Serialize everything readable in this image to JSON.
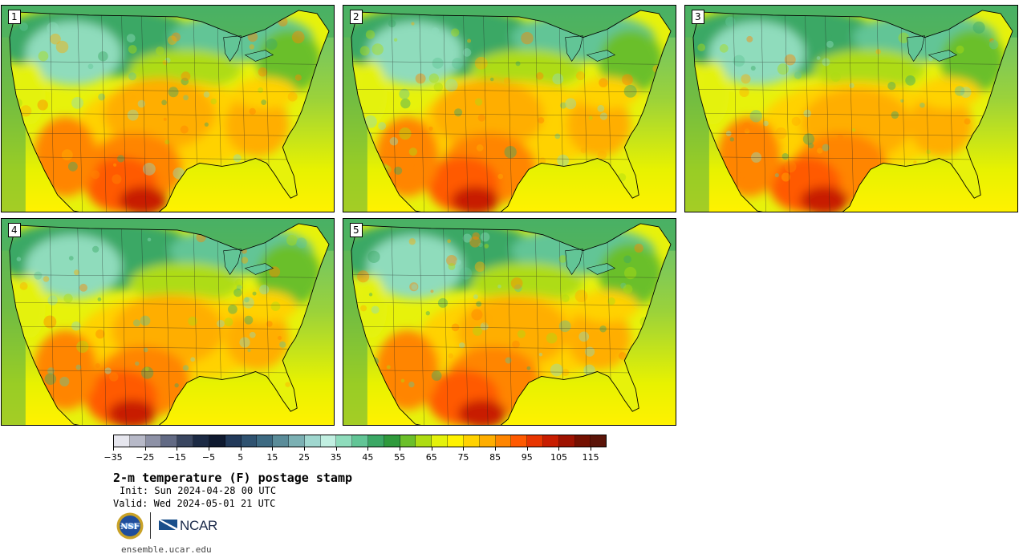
{
  "figure": {
    "title": "2-m temperature (F) postage stamp",
    "init": "Init: Sun 2024-04-28 00 UTC",
    "valid": "Valid: Wed 2024-05-01 21 UTC",
    "website": "ensemble.ucar.edu",
    "logos": [
      "NSF",
      "NCAR"
    ]
  },
  "panels": [
    {
      "label": "1",
      "seed": 11
    },
    {
      "label": "2",
      "seed": 23
    },
    {
      "label": "3",
      "seed": 37
    },
    {
      "label": "4",
      "seed": 51
    },
    {
      "label": "5",
      "seed": 67
    }
  ],
  "colorbar": {
    "ticks": [
      "−35",
      "−25",
      "−15",
      "−5",
      "5",
      "15",
      "25",
      "35",
      "45",
      "55",
      "65",
      "75",
      "85",
      "95",
      "105",
      "115"
    ],
    "colors": [
      "#e6e6ee",
      "#b7b9c8",
      "#8d91a6",
      "#626a84",
      "#3a4660",
      "#1c2a44",
      "#0f1a30",
      "#223a5a",
      "#2f5270",
      "#3d6a82",
      "#5a8c99",
      "#7bb0b3",
      "#a0d7cf",
      "#c1efe1",
      "#8fdcbc",
      "#62c596",
      "#3ba865",
      "#2f9a3c",
      "#6bbf2a",
      "#aedc12",
      "#e4f20b",
      "#fff200",
      "#ffd200",
      "#ffae00",
      "#ff8500",
      "#ff5a00",
      "#e83500",
      "#c81d00",
      "#9e1200",
      "#741000",
      "#5b1409"
    ]
  }
}
